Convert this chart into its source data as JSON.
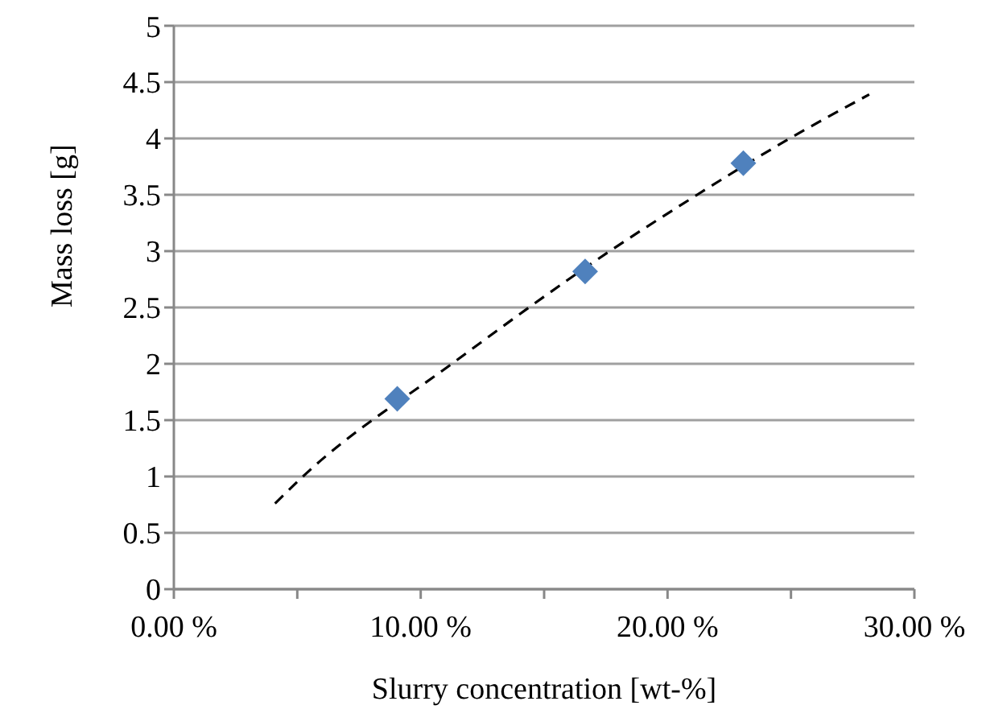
{
  "chart_data": {
    "type": "scatter",
    "xlabel": "Slurry concentration [wt-%]",
    "ylabel": "Mass loss [g]",
    "xlim": [
      0,
      30
    ],
    "xticks": [
      {
        "value": 0,
        "label": "0.00 %"
      },
      {
        "value": 5,
        "label": null
      },
      {
        "value": 10,
        "label": "10.00 %"
      },
      {
        "value": 15,
        "label": null
      },
      {
        "value": 20,
        "label": "20.00 %"
      },
      {
        "value": 25,
        "label": null
      },
      {
        "value": 30,
        "label": "30.00 %"
      }
    ],
    "ylim": [
      0,
      5
    ],
    "yticks": [
      0,
      0.5,
      1,
      1.5,
      2,
      2.5,
      3,
      3.5,
      4,
      4.5,
      5
    ],
    "grid": "y",
    "series": [
      {
        "color": "#4f81bd",
        "marker": "diamond",
        "x": [
          9.05,
          16.66,
          23.07
        ],
        "values": [
          1.69,
          2.82,
          3.78
        ]
      },
      {
        "type": "line",
        "color": "#000000",
        "marker": "none",
        "line_style": "dashed",
        "x": [
          4.1,
          5.23,
          11.26,
          17.66,
          21.2,
          24.95,
          28.17
        ],
        "values": [
          0.76,
          1,
          2,
          3,
          3.5,
          4,
          4.39
        ]
      }
    ]
  }
}
